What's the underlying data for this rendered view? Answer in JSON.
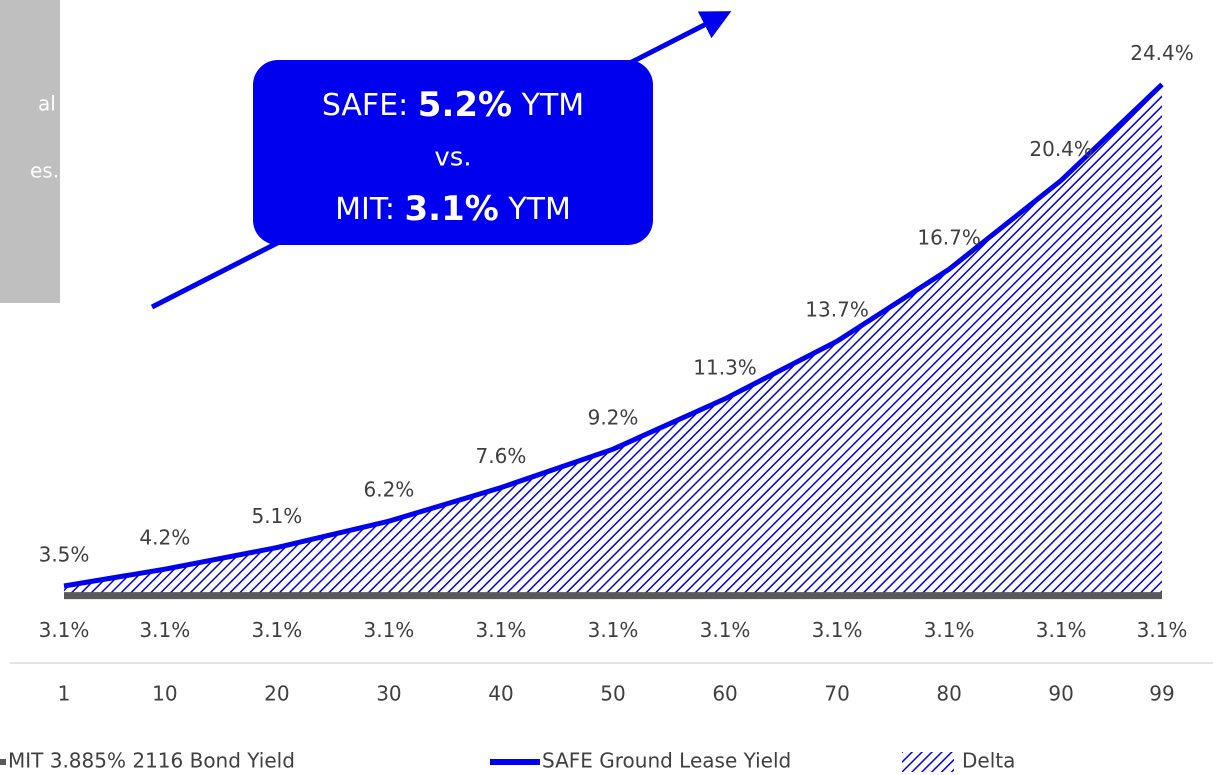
{
  "chart_data": {
    "type": "area-delta",
    "x": [
      1,
      10,
      20,
      30,
      40,
      50,
      60,
      70,
      80,
      90,
      99
    ],
    "xlim": [
      1,
      99
    ],
    "xticks": [
      1,
      10,
      20,
      30,
      40,
      50,
      60,
      70,
      80,
      90,
      99
    ],
    "ylim": [
      0,
      26
    ],
    "series": [
      {
        "name": "MIT 3.885% 2116 Bond Yield",
        "color": "#595959",
        "values": [
          3.1,
          3.1,
          3.1,
          3.1,
          3.1,
          3.1,
          3.1,
          3.1,
          3.1,
          3.1,
          3.1
        ],
        "value_labels": [
          "3.1%",
          "3.1%",
          "3.1%",
          "3.1%",
          "3.1%",
          "3.1%",
          "3.1%",
          "3.1%",
          "3.1%",
          "3.1%",
          "3.1%"
        ]
      },
      {
        "name": "SAFE Ground Lease Yield",
        "color": "#0000ee",
        "values": [
          3.5,
          4.2,
          5.1,
          6.2,
          7.6,
          9.2,
          11.3,
          13.7,
          16.7,
          20.4,
          24.4
        ],
        "value_labels": [
          "3.5%",
          "4.2%",
          "5.1%",
          "6.2%",
          "7.6%",
          "9.2%",
          "11.3%",
          "13.7%",
          "16.7%",
          "20.4%",
          "24.4%"
        ]
      }
    ],
    "delta": {
      "name": "Delta",
      "color": "#0000ee"
    },
    "callout": {
      "line1": [
        "SAFE: ",
        "5.2%",
        " YTM"
      ],
      "line2": "vs.",
      "line3": [
        "MIT: ",
        "3.1%",
        " YTM"
      ]
    },
    "sidebar_text": [
      "al",
      "es.”"
    ]
  }
}
